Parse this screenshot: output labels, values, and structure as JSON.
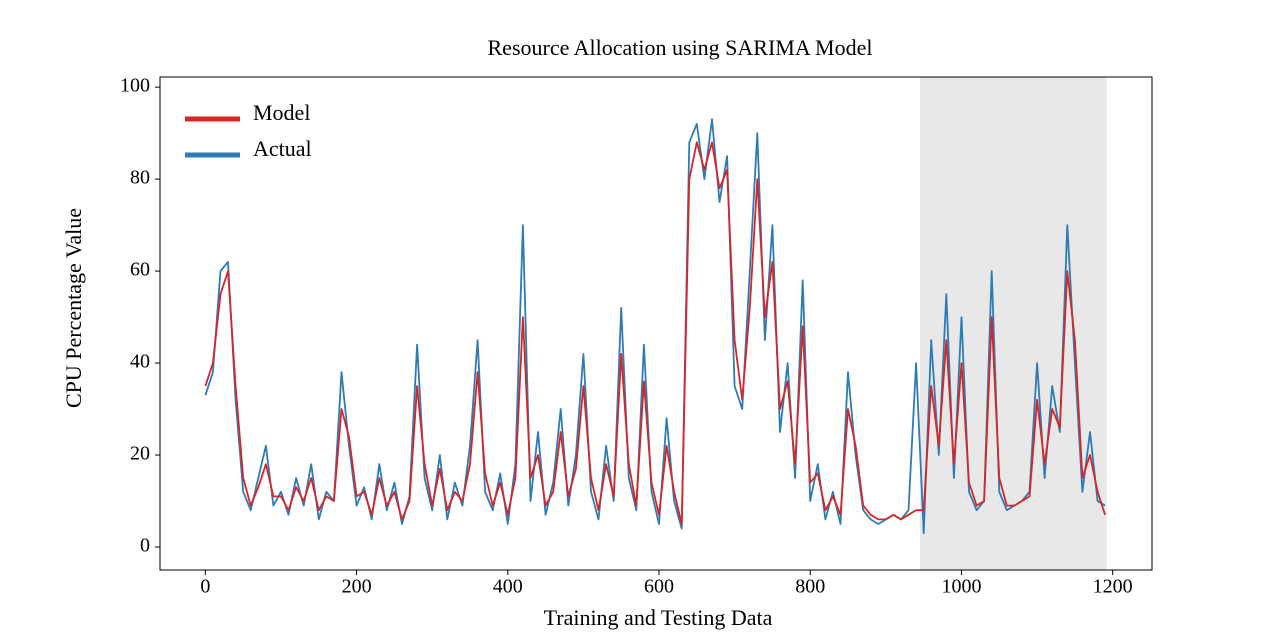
{
  "chart_data": {
    "type": "line",
    "title": "Resource Allocation using SARIMA Model",
    "xlabel": "Training and Testing Data",
    "ylabel": "CPU Percentage Value",
    "x": [
      0,
      10,
      20,
      30,
      40,
      50,
      60,
      70,
      80,
      90,
      100,
      110,
      120,
      130,
      140,
      150,
      160,
      170,
      180,
      190,
      200,
      210,
      220,
      230,
      240,
      250,
      260,
      270,
      280,
      290,
      300,
      310,
      320,
      330,
      340,
      350,
      360,
      370,
      380,
      390,
      400,
      410,
      420,
      430,
      440,
      450,
      460,
      470,
      480,
      490,
      500,
      510,
      520,
      530,
      540,
      550,
      560,
      570,
      580,
      590,
      600,
      610,
      620,
      630,
      640,
      650,
      660,
      670,
      680,
      690,
      700,
      710,
      720,
      730,
      740,
      750,
      760,
      770,
      780,
      790,
      800,
      810,
      820,
      830,
      840,
      850,
      860,
      870,
      880,
      890,
      900,
      910,
      920,
      930,
      940,
      950,
      960,
      970,
      980,
      990,
      1000,
      1010,
      1020,
      1030,
      1040,
      1050,
      1060,
      1070,
      1080,
      1090,
      1100,
      1110,
      1120,
      1130,
      1140,
      1150,
      1160,
      1170,
      1180,
      1190
    ],
    "series": [
      {
        "name": "Model",
        "color": "#d62728",
        "values": [
          35,
          40,
          55,
          60,
          35,
          15,
          9,
          13,
          18,
          11,
          11,
          8,
          13,
          10,
          15,
          8,
          11,
          10,
          30,
          24,
          11,
          12,
          7,
          15,
          9,
          12,
          6,
          10,
          35,
          18,
          9,
          17,
          8,
          12,
          10,
          18,
          38,
          16,
          9,
          14,
          7,
          15,
          50,
          15,
          20,
          9,
          12,
          25,
          11,
          17,
          35,
          15,
          8,
          18,
          11,
          42,
          18,
          9,
          36,
          14,
          7,
          22,
          12,
          5,
          80,
          88,
          82,
          88,
          78,
          82,
          45,
          32,
          52,
          80,
          50,
          62,
          30,
          36,
          18,
          48,
          14,
          16,
          8,
          11,
          7,
          30,
          22,
          9,
          7,
          6,
          6,
          7,
          6,
          7,
          8,
          8,
          35,
          22,
          45,
          18,
          40,
          14,
          9,
          10,
          50,
          15,
          9,
          9,
          10,
          11,
          32,
          18,
          30,
          26,
          60,
          45,
          15,
          20,
          12,
          7
        ]
      },
      {
        "name": "Actual",
        "color": "#2f7bb4",
        "values": [
          33,
          38,
          60,
          62,
          32,
          12,
          8,
          15,
          22,
          9,
          12,
          7,
          15,
          9,
          18,
          6,
          12,
          10,
          38,
          22,
          9,
          13,
          6,
          18,
          8,
          14,
          5,
          11,
          44,
          15,
          8,
          20,
          6,
          14,
          9,
          22,
          45,
          12,
          8,
          16,
          5,
          18,
          70,
          10,
          25,
          7,
          14,
          30,
          9,
          20,
          42,
          12,
          6,
          22,
          10,
          52,
          15,
          8,
          44,
          12,
          5,
          28,
          10,
          4,
          88,
          92,
          80,
          93,
          75,
          85,
          35,
          30,
          60,
          90,
          45,
          70,
          25,
          40,
          15,
          58,
          10,
          18,
          6,
          12,
          5,
          38,
          20,
          8,
          6,
          5,
          6,
          7,
          6,
          8,
          40,
          3,
          45,
          20,
          55,
          15,
          50,
          12,
          8,
          10,
          60,
          12,
          8,
          9,
          10,
          12,
          40,
          15,
          35,
          25,
          70,
          40,
          12,
          25,
          10,
          9
        ]
      }
    ],
    "xlim": [
      -60,
      1252
    ],
    "ylim": [
      -5,
      102.2
    ],
    "xticks": [
      0,
      200,
      400,
      600,
      800,
      1000,
      1200
    ],
    "yticks": [
      0,
      20,
      40,
      60,
      80,
      100
    ],
    "highlight_range": [
      945,
      1192
    ],
    "highlight_color": "#e8e8e8",
    "legend": "upper left",
    "grid": false
  }
}
